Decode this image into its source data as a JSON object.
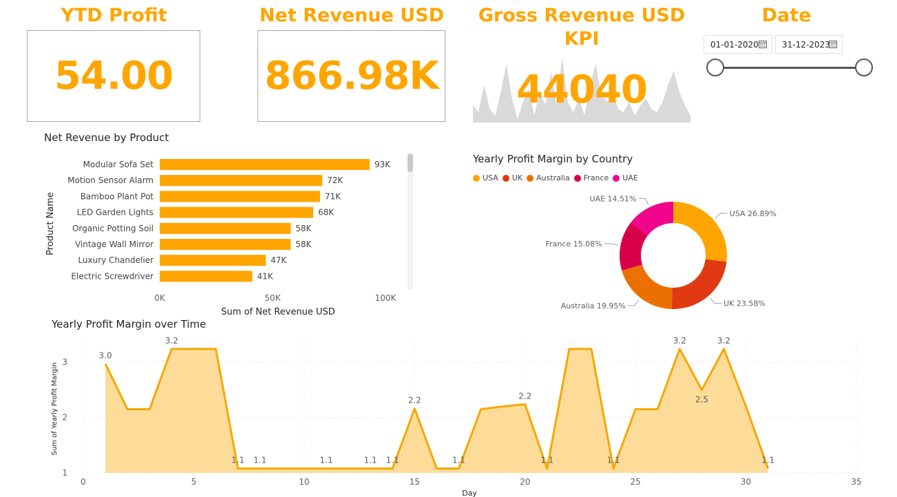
{
  "kpis": {
    "ytd_profit": {
      "title": "YTD Profit",
      "value": "54.00"
    },
    "net_revenue": {
      "title": "Net Revenue USD",
      "value": "866.98K"
    },
    "gross_revenue": {
      "title": "Gross Revenue USD KPI",
      "value": "44040"
    }
  },
  "date_filter": {
    "title": "Date",
    "start": "01-01-2020",
    "end": "31-12-2023"
  },
  "colors": {
    "accent": "#ffa500",
    "sparkline": "#d9d9d9",
    "area_fill": "#fddc9a",
    "line": "#f5a800"
  },
  "sparkline": [
    0.25,
    0.15,
    0.55,
    0.2,
    0.1,
    0.45,
    0.85,
    0.35,
    0.05,
    0.3,
    0.5,
    0.1,
    0.45,
    0.25,
    0.75,
    0.25,
    0.95,
    0.3,
    0.15,
    0.35,
    0.1,
    0.55,
    0.85,
    0.4,
    0.3,
    0.45,
    0.2,
    0.15,
    0.3,
    0.1,
    0.25,
    0.35,
    0.2,
    0.15,
    0.3,
    0.55,
    0.75,
    0.45,
    0.25,
    0.1
  ],
  "chart_data": [
    {
      "type": "bar",
      "orientation": "horizontal",
      "title": "Net Revenue by Product",
      "xlabel": "Sum of Net Revenue USD",
      "ylabel": "Product Name",
      "xlim": [
        0,
        100000
      ],
      "x_ticks": [
        "0K",
        "50K",
        "100K"
      ],
      "categories": [
        "Modular Sofa Set",
        "Motion Sensor Alarm",
        "Bamboo Plant Pot",
        "LED Garden Lights",
        "Organic Potting Soil",
        "Vintage Wall Mirror",
        "Luxury Chandelier",
        "Electric Screwdriver"
      ],
      "values": [
        93000,
        72000,
        71000,
        68000,
        58000,
        58000,
        47000,
        41000
      ],
      "labels": [
        "93K",
        "72K",
        "71K",
        "68K",
        "58K",
        "58K",
        "47K",
        "41K"
      ],
      "color": "#ffa500"
    },
    {
      "type": "pie",
      "variant": "donut",
      "title": "Yearly Profit Margin by Country",
      "legend_placement": "top-left",
      "slices": [
        {
          "name": "USA",
          "percent": 26.89,
          "label": "USA 26.89%",
          "color": "#ffa500"
        },
        {
          "name": "UK",
          "percent": 23.58,
          "label": "UK 23.58%",
          "color": "#e03a12"
        },
        {
          "name": "Australia",
          "percent": 19.95,
          "label": "Australia 19.95%",
          "color": "#ec7000"
        },
        {
          "name": "France",
          "percent": 15.08,
          "label": "France 15.08%",
          "color": "#d9004a"
        },
        {
          "name": "UAE",
          "percent": 14.51,
          "label": "UAE 14.51%",
          "color": "#f0058c"
        }
      ]
    },
    {
      "type": "area",
      "title": "Yearly Profit Margin over Time",
      "xlabel": "Day",
      "ylabel": "Sum of Yearly Profit Margin",
      "xlim": [
        0,
        35
      ],
      "ylim": [
        1,
        3.4
      ],
      "x_ticks": [
        0,
        5,
        10,
        15,
        20,
        25,
        30,
        35
      ],
      "y_ticks": [
        1,
        2,
        3
      ],
      "grid": true,
      "x": [
        1,
        2,
        3,
        4,
        5,
        6,
        7,
        8,
        9,
        10,
        11,
        12,
        13,
        14,
        15,
        16,
        17,
        18,
        19,
        20,
        21,
        22,
        23,
        24,
        25,
        26,
        27,
        28,
        29,
        30,
        31
      ],
      "y": [
        2.97,
        2.15,
        2.15,
        3.24,
        3.24,
        3.24,
        1.08,
        1.08,
        1.08,
        1.08,
        1.08,
        1.08,
        1.08,
        1.08,
        2.16,
        1.08,
        1.08,
        2.15,
        2.2,
        2.24,
        1.08,
        3.24,
        3.24,
        1.08,
        2.15,
        2.15,
        3.24,
        2.5,
        3.24,
        2.2,
        1.08
      ],
      "point_labels": [
        {
          "x": 1,
          "text": "3.0"
        },
        {
          "x": 4,
          "text": "3.2"
        },
        {
          "x": 7,
          "text": "1.1"
        },
        {
          "x": 8,
          "text": "1.1"
        },
        {
          "x": 11,
          "text": "1.1"
        },
        {
          "x": 13,
          "text": "1.1"
        },
        {
          "x": 14,
          "text": "1.1"
        },
        {
          "x": 15,
          "text": "2.2"
        },
        {
          "x": 17,
          "text": "1.1"
        },
        {
          "x": 20,
          "text": "2.2"
        },
        {
          "x": 21,
          "text": "1.1"
        },
        {
          "x": 24,
          "text": "1.1"
        },
        {
          "x": 27,
          "text": "3.2"
        },
        {
          "x": 28,
          "text": "2.5"
        },
        {
          "x": 29,
          "text": "3.2"
        },
        {
          "x": 31,
          "text": "1.1"
        }
      ]
    }
  ]
}
